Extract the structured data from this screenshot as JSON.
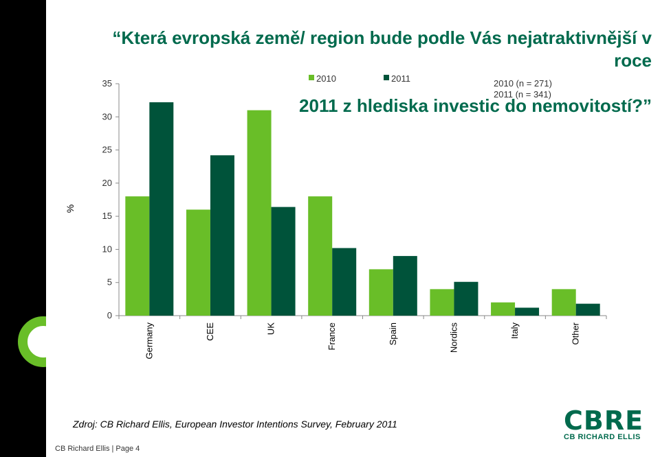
{
  "slide": {
    "title_line1": "“Která evropská země/ region bude podle Vás nejatraktivnější v roce",
    "title_line2": "2011 z hlediska investic do nemovitostí?”",
    "source": "Zdroj: CB Richard Ellis, European Investor Intentions Survey, February 2011",
    "footer": "CB Richard Ellis | Page 4",
    "logo_text": "CBRE",
    "logo_subtext": "CB RICHARD ELLIS",
    "note_line1": "2010 (n = 271)",
    "note_line2": "2011 (n = 341)",
    "accent_color": "#006a4d",
    "left_bar_color": "#000000"
  },
  "chart_data": {
    "type": "bar",
    "title": "",
    "xlabel": "",
    "ylabel": "%",
    "ylim": [
      0,
      35
    ],
    "yticks": [
      0,
      5,
      10,
      15,
      20,
      25,
      30,
      35
    ],
    "categories": [
      "Germany",
      "CEE",
      "UK",
      "France",
      "Spain",
      "Nordics",
      "Italy",
      "Other"
    ],
    "series": [
      {
        "name": "2010",
        "color": "#69be28",
        "values": [
          18,
          16,
          31,
          18,
          7,
          4,
          2,
          4
        ]
      },
      {
        "name": "2011",
        "color": "#00533a",
        "values": [
          32.2,
          24.2,
          16.4,
          10.2,
          9,
          5.1,
          1.2,
          1.8
        ]
      }
    ],
    "grid": false,
    "legend": "top"
  }
}
